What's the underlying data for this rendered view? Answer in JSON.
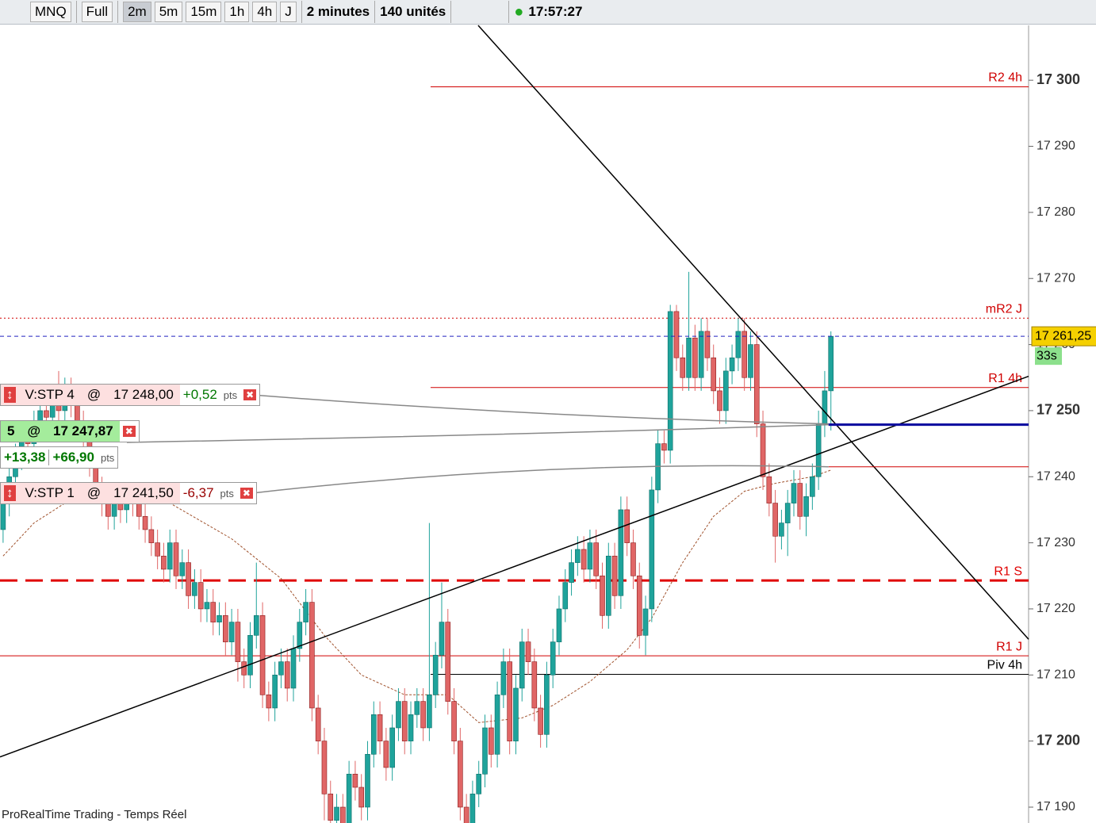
{
  "toolbar": {
    "symbol": "MNQ",
    "mode": "Full",
    "timeframes": [
      "2m",
      "5m",
      "15m",
      "1h",
      "4h",
      "J"
    ],
    "interval": "2 minutes",
    "units": "140 unités",
    "clock": "17:57:27"
  },
  "chart_data": {
    "type": "candlestick",
    "up_color": "#1fa39b",
    "down_color": "#e06666",
    "xlim": [
      -0.5,
      166
    ],
    "ylim": [
      17187.6,
      17308.3
    ],
    "yticks": [
      {
        "value": 17190,
        "label": "17 190"
      },
      {
        "value": 17200,
        "label": "17 200"
      },
      {
        "value": 17210,
        "label": "17 210"
      },
      {
        "value": 17220,
        "label": "17 220"
      },
      {
        "value": 17230,
        "label": "17 230"
      },
      {
        "value": 17240,
        "label": "17 240"
      },
      {
        "value": 17250,
        "label": "17 250"
      },
      {
        "value": 17260,
        "label": "17 260"
      },
      {
        "value": 17270,
        "label": "17 270"
      },
      {
        "value": 17280,
        "label": "17 280"
      },
      {
        "value": 17290,
        "label": "17 290"
      },
      {
        "value": 17300,
        "label": "17 300"
      }
    ],
    "last_label": "17 261,25",
    "countdown": "33s",
    "candles": [
      [
        17232,
        17238,
        17230,
        17236
      ],
      [
        17236,
        17242,
        17234,
        17240
      ],
      [
        17240,
        17245,
        17238,
        17243
      ],
      [
        17243,
        17248,
        17241,
        17246
      ],
      [
        17246,
        17248,
        17243,
        17245
      ],
      [
        17245,
        17250,
        17243,
        17248
      ],
      [
        17248,
        17252,
        17246,
        17250
      ],
      [
        17250,
        17252,
        17247,
        17249
      ],
      [
        17249,
        17254,
        17247,
        17252
      ],
      [
        17252,
        17256,
        17248,
        17250
      ],
      [
        17250,
        17255,
        17248,
        17253
      ],
      [
        17253,
        17255,
        17249,
        17251
      ],
      [
        17251,
        17253,
        17246,
        17248
      ],
      [
        17248,
        17250,
        17244,
        17246
      ],
      [
        17246,
        17248,
        17240,
        17242
      ],
      [
        17242,
        17244,
        17236,
        17238
      ],
      [
        17238,
        17240,
        17234,
        17236
      ],
      [
        17236,
        17238,
        17232,
        17234
      ],
      [
        17234,
        17238,
        17232,
        17236
      ],
      [
        17236,
        17238,
        17233,
        17235
      ],
      [
        17235,
        17239,
        17233,
        17237
      ],
      [
        17237,
        17239,
        17234,
        17236
      ],
      [
        17236,
        17238,
        17232,
        17234
      ],
      [
        17234,
        17236,
        17230,
        17232
      ],
      [
        17232,
        17234,
        17228,
        17230
      ],
      [
        17230,
        17232,
        17226,
        17228
      ],
      [
        17228,
        17230,
        17224,
        17226
      ],
      [
        17226,
        17232,
        17224,
        17230
      ],
      [
        17230,
        17232,
        17223,
        17225
      ],
      [
        17225,
        17229,
        17223,
        17227
      ],
      [
        17227,
        17229,
        17220,
        17222
      ],
      [
        17222,
        17226,
        17220,
        17224
      ],
      [
        17224,
        17226,
        17218,
        17220
      ],
      [
        17220,
        17223,
        17218,
        17221
      ],
      [
        17221,
        17223,
        17216,
        17218
      ],
      [
        17218,
        17221,
        17216,
        17219
      ],
      [
        17219,
        17221,
        17213,
        17215
      ],
      [
        17215,
        17220,
        17213,
        17218
      ],
      [
        17218,
        17220,
        17209,
        17212
      ],
      [
        17212,
        17214,
        17208,
        17210
      ],
      [
        17210,
        17218,
        17208,
        17216
      ],
      [
        17216,
        17227,
        17214,
        17219
      ],
      [
        17219,
        17221,
        17205,
        17207
      ],
      [
        17207,
        17209,
        17203,
        17205
      ],
      [
        17205,
        17212,
        17203,
        17210
      ],
      [
        17210,
        17214,
        17208,
        17212
      ],
      [
        17212,
        17214,
        17206,
        17208
      ],
      [
        17208,
        17216,
        17206,
        17214
      ],
      [
        17214,
        17220,
        17212,
        17218
      ],
      [
        17218,
        17223,
        17216,
        17221
      ],
      [
        17221,
        17223,
        17203,
        17205
      ],
      [
        17205,
        17207,
        17198,
        17200
      ],
      [
        17200,
        17202,
        17188,
        17192
      ],
      [
        17192,
        17194,
        17186,
        17188
      ],
      [
        17188,
        17192,
        17186,
        17190
      ],
      [
        17190,
        17192,
        17185,
        17187
      ],
      [
        17187,
        17197,
        17185,
        17195
      ],
      [
        17195,
        17197,
        17191,
        17193
      ],
      [
        17193,
        17195,
        17188,
        17190
      ],
      [
        17190,
        17200,
        17188,
        17198
      ],
      [
        17198,
        17206,
        17196,
        17204
      ],
      [
        17204,
        17206,
        17198,
        17200
      ],
      [
        17200,
        17202,
        17194,
        17196
      ],
      [
        17196,
        17204,
        17194,
        17202
      ],
      [
        17202,
        17208,
        17200,
        17206
      ],
      [
        17206,
        17208,
        17198,
        17200
      ],
      [
        17200,
        17206,
        17198,
        17204
      ],
      [
        17204,
        17208,
        17202,
        17206
      ],
      [
        17206,
        17208,
        17200,
        17202
      ],
      [
        17202,
        17233,
        17200,
        17207
      ],
      [
        17207,
        17215,
        17205,
        17213
      ],
      [
        17213,
        17224,
        17211,
        17218
      ],
      [
        17218,
        17220,
        17204,
        17206
      ],
      [
        17206,
        17208,
        17198,
        17200
      ],
      [
        17200,
        17202,
        17188,
        17190
      ],
      [
        17190,
        17192,
        17185,
        17187
      ],
      [
        17187,
        17194,
        17185,
        17192
      ],
      [
        17192,
        17197,
        17190,
        17195
      ],
      [
        17195,
        17204,
        17193,
        17202
      ],
      [
        17202,
        17204,
        17196,
        17198
      ],
      [
        17198,
        17209,
        17196,
        17207
      ],
      [
        17207,
        17214,
        17205,
        17212
      ],
      [
        17212,
        17214,
        17198,
        17200
      ],
      [
        17200,
        17210,
        17198,
        17208
      ],
      [
        17208,
        17217,
        17206,
        17215
      ],
      [
        17215,
        17217,
        17210,
        17212
      ],
      [
        17212,
        17214,
        17203,
        17205
      ],
      [
        17205,
        17207,
        17199,
        17201
      ],
      [
        17201,
        17212,
        17199,
        17210
      ],
      [
        17210,
        17217,
        17208,
        17215
      ],
      [
        17215,
        17222,
        17213,
        17220
      ],
      [
        17220,
        17226,
        17218,
        17224
      ],
      [
        17224,
        17229,
        17222,
        17227
      ],
      [
        17227,
        17231,
        17225,
        17229
      ],
      [
        17229,
        17231,
        17224,
        17226
      ],
      [
        17226,
        17232,
        17224,
        17230
      ],
      [
        17230,
        17232,
        17223,
        17225
      ],
      [
        17225,
        17227,
        17217,
        17219
      ],
      [
        17219,
        17230,
        17217,
        17228
      ],
      [
        17228,
        17230,
        17220,
        17222
      ],
      [
        17222,
        17237,
        17220,
        17235
      ],
      [
        17235,
        17237,
        17228,
        17230
      ],
      [
        17230,
        17232,
        17223,
        17225
      ],
      [
        17225,
        17227,
        17214,
        17216
      ],
      [
        17216,
        17222,
        17213,
        17220
      ],
      [
        17220,
        17240,
        17218,
        17238
      ],
      [
        17238,
        17247,
        17236,
        17245
      ],
      [
        17245,
        17247,
        17242,
        17244
      ],
      [
        17244,
        17266,
        17242,
        17265
      ],
      [
        17265,
        17266,
        17256,
        17258
      ],
      [
        17258,
        17260,
        17253,
        17255
      ],
      [
        17255,
        17271,
        17253,
        17261
      ],
      [
        17261,
        17263,
        17253,
        17255
      ],
      [
        17255,
        17264,
        17253,
        17262
      ],
      [
        17262,
        17264,
        17256,
        17258
      ],
      [
        17258,
        17260,
        17251,
        17253
      ],
      [
        17253,
        17255,
        17248,
        17250
      ],
      [
        17250,
        17258,
        17248,
        17256
      ],
      [
        17256,
        17260,
        17254,
        17258
      ],
      [
        17258,
        17264,
        17256,
        17262
      ],
      [
        17262,
        17264,
        17253,
        17255
      ],
      [
        17255,
        17262,
        17253,
        17260
      ],
      [
        17260,
        17262,
        17246,
        17248
      ],
      [
        17248,
        17250,
        17238,
        17240
      ],
      [
        17240,
        17242,
        17234,
        17236
      ],
      [
        17236,
        17238,
        17227,
        17231
      ],
      [
        17231,
        17235,
        17229,
        17233
      ],
      [
        17233,
        17238,
        17228,
        17236
      ],
      [
        17236,
        17241,
        17234,
        17239
      ],
      [
        17239,
        17241,
        17232,
        17234
      ],
      [
        17234,
        17239,
        17231,
        17237
      ],
      [
        17237,
        17242,
        17235,
        17240
      ],
      [
        17240,
        17250,
        17238,
        17248
      ],
      [
        17248,
        17256,
        17246,
        17253
      ],
      [
        17253,
        17262,
        17247,
        17261.25
      ]
    ],
    "ma": {
      "color": "#a0522d",
      "x": [
        0,
        5,
        10,
        20,
        27,
        37,
        45,
        52,
        58,
        65,
        72,
        77,
        84,
        89,
        95,
        101,
        105,
        110,
        115,
        120,
        125,
        131,
        134
      ],
      "values": [
        17228,
        17233,
        17236,
        17236,
        17236,
        17230.6,
        17224.6,
        17216,
        17210,
        17207,
        17207,
        17202.8,
        17203.5,
        17205.4,
        17209,
        17213.8,
        17218.6,
        17227,
        17234,
        17237.8,
        17239,
        17240,
        17241
      ]
    },
    "levels": [
      {
        "label": "R2 4h",
        "value": 17299,
        "start": 69.2,
        "color": "#d00000",
        "dash": "solid"
      },
      {
        "label": "mR2 J",
        "value": 17264,
        "start": -0.5,
        "color": "#d00000",
        "dash": "dotted"
      },
      {
        "label": "R1 4h",
        "value": 17253.5,
        "start": 69.2,
        "color": "#d00000",
        "dash": "solid"
      },
      {
        "label": "R1 S",
        "value": 17224.3,
        "start": -0.5,
        "color": "#e00000",
        "dash": "dashed"
      },
      {
        "label": "R1 J",
        "value": 17212.9,
        "start": -0.5,
        "color": "#d00000",
        "dash": "solid"
      },
      {
        "label": "Piv 4h",
        "value": 17210.1,
        "start": 69.2,
        "color": "#000000",
        "dash": "solid"
      }
    ],
    "trendlines": [
      {
        "x": [
          76.9,
          166
        ],
        "y": [
          17308.3,
          17215.4
        ]
      },
      {
        "x": [
          -0.5,
          166
        ],
        "y": [
          17197.6,
          17255.2
        ]
      }
    ]
  },
  "orders": [
    {
      "name": "V:STP 4",
      "at": "@",
      "price": 17248,
      "price_label": "17 248,00",
      "pnl": "+0,52",
      "unit": "pts"
    },
    {
      "name": "5",
      "at": "@",
      "price": 17247.87,
      "price_label": "17 247,87",
      "pnl": "+13,38",
      "total": "+66,90",
      "unit": "pts"
    },
    {
      "name": "V:STP 1",
      "at": "@",
      "price": 17241.5,
      "price_label": "17 241,50",
      "pnl": "-6,37",
      "unit": "pts"
    }
  ],
  "footer": "ProRealTime Trading - Temps Réel"
}
